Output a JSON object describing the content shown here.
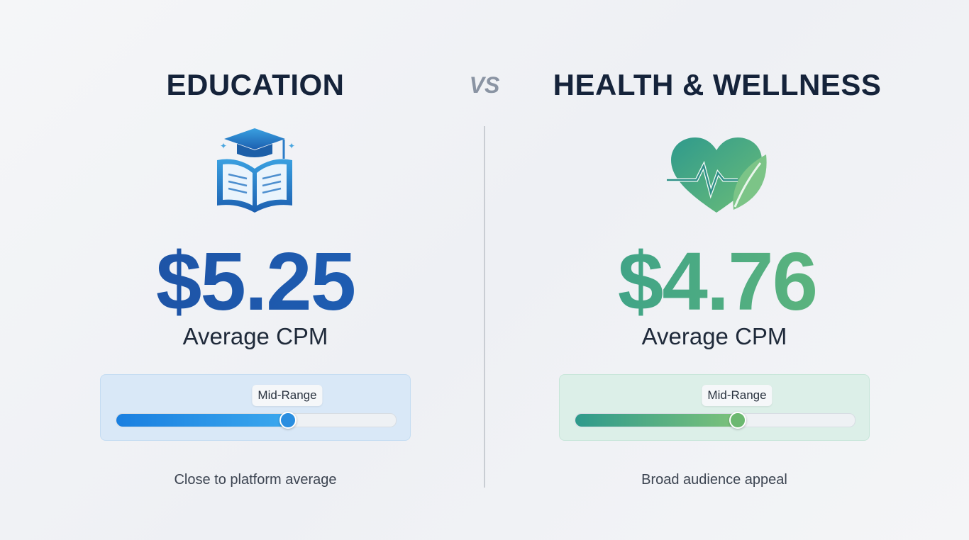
{
  "vs": "VS",
  "panels": [
    {
      "title": "EDUCATION",
      "price": "$5.25",
      "metric": "Average CPM",
      "badge": "Mid-Range",
      "caption": "Close to platform average"
    },
    {
      "title": "HEALTH & WELLNESS",
      "price": "$4.76",
      "metric": "Average CPM",
      "badge": "Mid-Range",
      "caption": "Broad audience appeal"
    }
  ]
}
